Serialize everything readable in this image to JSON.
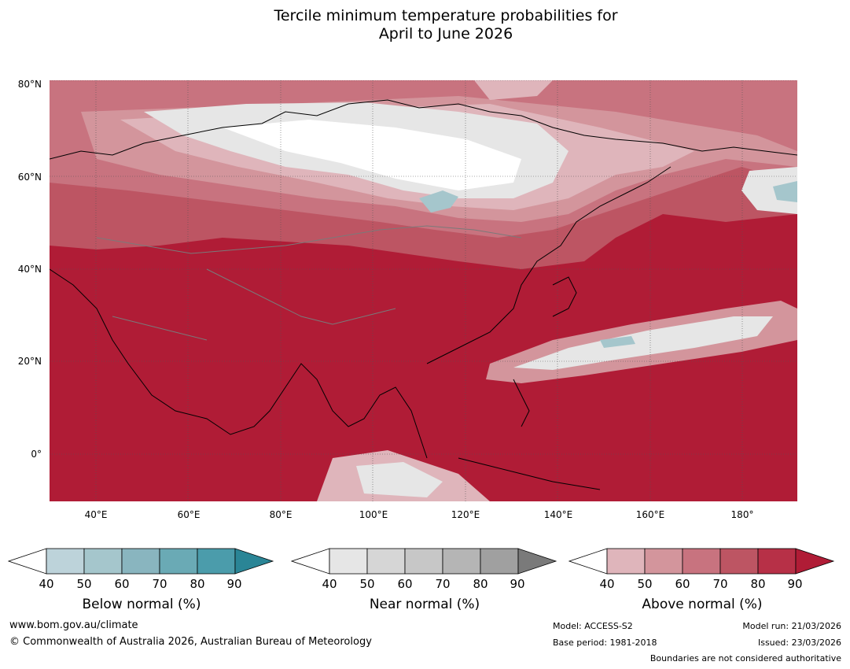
{
  "title": {
    "line1": "Tercile minimum temperature probabilities for",
    "line2": "April to June 2026"
  },
  "map": {
    "region": "Asia",
    "lat_labels": [
      "80°N",
      "60°N",
      "40°N",
      "20°N",
      "0°"
    ],
    "lon_labels": [
      "40°E",
      "60°E",
      "80°E",
      "100°E",
      "120°E",
      "140°E",
      "160°E",
      "180°"
    ]
  },
  "legends": [
    {
      "label": "Below normal (%)",
      "ticks": [
        "40",
        "50",
        "60",
        "70",
        "80",
        "90"
      ],
      "colors": [
        "#ffffff",
        "#bdd3da",
        "#a5c6cc",
        "#89b5bf",
        "#6aaab5",
        "#4b9cab",
        "#2a8596"
      ]
    },
    {
      "label": "Near normal (%)",
      "ticks": [
        "40",
        "50",
        "60",
        "70",
        "80",
        "90"
      ],
      "colors": [
        "#ffffff",
        "#e6e6e6",
        "#d6d6d6",
        "#c7c7c7",
        "#b5b5b5",
        "#a0a0a0",
        "#7a7a7a"
      ]
    },
    {
      "label": "Above normal (%)",
      "ticks": [
        "40",
        "50",
        "60",
        "70",
        "80",
        "90"
      ],
      "colors": [
        "#ffffff",
        "#dfb5bb",
        "#d3959c",
        "#c8737f",
        "#bd5563",
        "#b73047",
        "#b01c36"
      ]
    }
  ],
  "footer": {
    "website": "www.bom.gov.au/climate",
    "copyright": "© Commonwealth of Australia 2026, Australian Bureau of Meteorology",
    "model": "Model: ACCESS-S2",
    "base_period": "Base period: 1981-2018",
    "model_run": "Model run: 21/03/2026",
    "issued": "Issued: 23/03/2026",
    "disclaimer": "Boundaries are not considered authoritative"
  },
  "colors": {
    "above_90": "#b01c36",
    "above_80": "#b73047",
    "above_70": "#bd5563",
    "above_60": "#c8737f",
    "above_50": "#d3959c",
    "above_40": "#dfb5bb",
    "near": "#e6e6e6",
    "white": "#ffffff",
    "below": "#a5c6cc"
  }
}
